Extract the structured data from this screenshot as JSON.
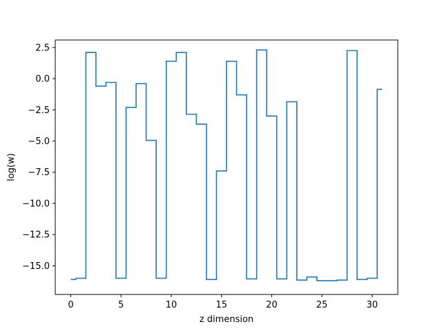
{
  "chart_data": {
    "type": "line",
    "drawstyle": "steps-mid",
    "title": "",
    "xlabel": "z dimension",
    "ylabel": "log(w)",
    "xlim": [
      -1.55,
      32.55
    ],
    "ylim": [
      -17.3,
      3.1
    ],
    "x_ticks": [
      0,
      5,
      10,
      15,
      20,
      25,
      30
    ],
    "y_ticks": [
      2.5,
      0.0,
      -2.5,
      -5.0,
      -7.5,
      -10.0,
      -12.5,
      -15.0
    ],
    "x_tick_labels": [
      "0",
      "5",
      "10",
      "15",
      "20",
      "25",
      "30"
    ],
    "y_tick_labels": [
      "2.5",
      "0.0",
      "−2.5",
      "−5.0",
      "−7.5",
      "−10.0",
      "−12.5",
      "−15.0"
    ],
    "grid": false,
    "series": [
      {
        "color": "#1f77b4",
        "x": [
          0,
          1,
          2,
          3,
          4,
          5,
          6,
          7,
          8,
          9,
          10,
          11,
          12,
          13,
          14,
          15,
          16,
          17,
          18,
          19,
          20,
          21,
          22,
          23,
          24,
          25,
          26,
          27,
          28,
          29,
          30,
          31
        ],
        "y": [
          -16.1,
          -16.0,
          2.1,
          -0.6,
          -0.3,
          -16.0,
          -2.3,
          -0.4,
          -4.95,
          -16.0,
          1.4,
          2.1,
          -2.85,
          -3.65,
          -16.1,
          -7.4,
          1.4,
          -1.3,
          -16.05,
          2.3,
          -3.0,
          -16.05,
          -1.85,
          -16.15,
          -15.9,
          -16.2,
          -16.2,
          -16.15,
          2.25,
          -16.1,
          -16.0,
          -0.85
        ]
      }
    ]
  }
}
